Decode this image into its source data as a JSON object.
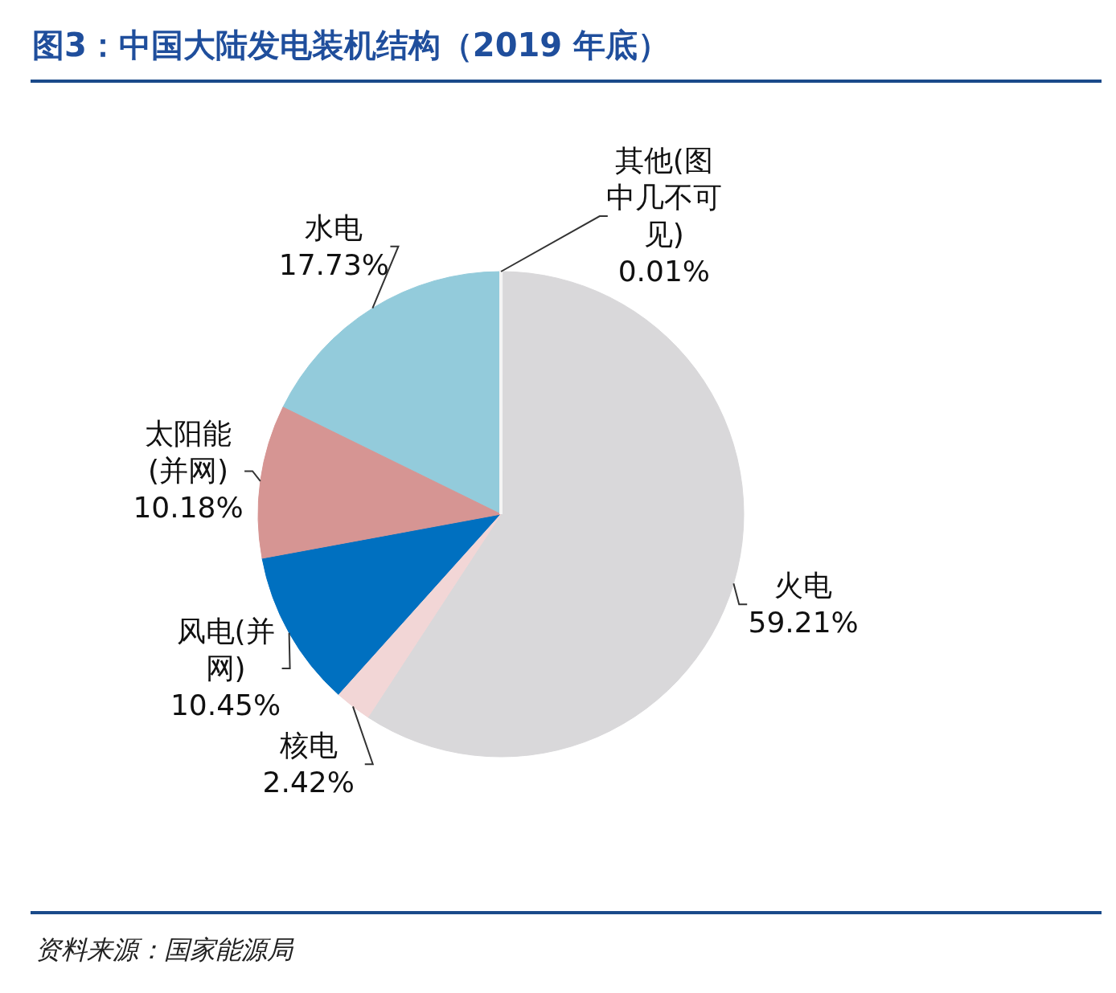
{
  "chart_data": {
    "type": "pie",
    "title": "图3：中国大陆发电装机结构（2019 年底）",
    "categories": [
      "其他(图中几不可见)",
      "火电",
      "核电",
      "风电(并网)",
      "太阳能(并网)",
      "水电"
    ],
    "values": [
      0.01,
      59.21,
      2.42,
      10.45,
      10.18,
      17.73
    ],
    "colors": [
      "#f4f4f4",
      "#d9d8da",
      "#f2d6d6",
      "#0070c0",
      "#d69593",
      "#93cbdb"
    ],
    "value_labels": [
      "0.01%",
      "59.21%",
      "2.42%",
      "10.45%",
      "10.18%",
      "17.73%"
    ],
    "annotations": [
      "资料来源：国家能源局"
    ]
  }
}
